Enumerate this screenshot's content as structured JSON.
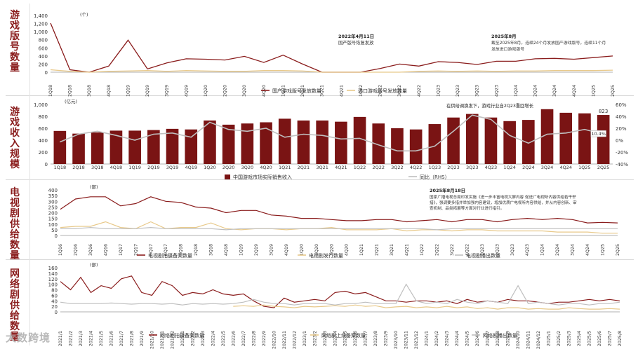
{
  "rows": [
    {
      "label": "游戏版号数量"
    },
    {
      "label": "游戏收入规模"
    },
    {
      "label": "电视剧供给数量"
    },
    {
      "label": "网络剧供给数量"
    }
  ],
  "watermark": "大数跨境",
  "chart_data": [
    {
      "type": "line",
      "unit": "(个)",
      "ylim": [
        0,
        1400
      ],
      "yticks": [
        "0",
        "200",
        "400",
        "600",
        "800",
        "1,000",
        "1,200",
        "1,400"
      ],
      "categories": [
        "1Q18",
        "2Q18",
        "3Q18",
        "4Q18",
        "1Q19",
        "2Q19",
        "3Q19",
        "4Q19",
        "1Q20",
        "2Q20",
        "3Q20",
        "4Q20",
        "1Q21",
        "2Q21",
        "3Q21",
        "4Q21",
        "1Q22",
        "2Q22",
        "3Q22",
        "4Q22",
        "1Q23",
        "2Q23",
        "3Q23",
        "4Q23",
        "1Q24",
        "2Q24",
        "3Q24",
        "4Q24",
        "1Q25",
        "2Q25"
      ],
      "series": [
        {
          "name": "国产游戏版号发放数量",
          "color": "#8a1c1c",
          "values": [
            1210,
            60,
            0,
            150,
            790,
            80,
            230,
            330,
            320,
            300,
            390,
            240,
            420,
            200,
            0,
            0,
            0,
            90,
            200,
            150,
            260,
            240,
            190,
            270,
            270,
            330,
            340,
            320,
            360,
            400
          ]
        },
        {
          "name": "进口游戏版号发放数量",
          "color": "#e8c98a",
          "values": [
            60,
            20,
            0,
            20,
            30,
            40,
            20,
            40,
            30,
            20,
            20,
            40,
            40,
            30,
            0,
            0,
            0,
            0,
            0,
            20,
            30,
            20,
            30,
            20,
            30,
            30,
            40,
            40,
            40,
            50
          ]
        }
      ],
      "annotations": [
        {
          "title": "2022年4月11日",
          "text": "国产版号恢复发放"
        },
        {
          "title": "2025年8月",
          "text": "截至2025年8月，连续24个月发放国产游戏版号，连续11个月",
          "text2": "发放进口游戏版号"
        }
      ]
    },
    {
      "type": "bar",
      "unit": "(亿元)",
      "ylim": [
        0,
        1000
      ],
      "yticks": [
        "0",
        "200",
        "400",
        "600",
        "800",
        "1,000"
      ],
      "y2ticks": [
        "-40%",
        "-20%",
        "0%",
        "20%",
        "40%",
        "60%"
      ],
      "categories": [
        "1Q18",
        "2Q18",
        "3Q18",
        "4Q18",
        "1Q19",
        "2Q19",
        "3Q19",
        "4Q19",
        "1Q20",
        "2Q20",
        "3Q20",
        "4Q20",
        "1Q21",
        "2Q21",
        "3Q21",
        "4Q21",
        "1Q22",
        "2Q22",
        "3Q22",
        "4Q22",
        "1Q23",
        "2Q23",
        "3Q23",
        "4Q23",
        "1Q24",
        "2Q24",
        "3Q24",
        "4Q24",
        "1Q25",
        "2Q25"
      ],
      "series": [
        {
          "name": "中国游戏市场实际销售收入",
          "color": "#7a1414",
          "values": [
            555,
            510,
            530,
            560,
            560,
            570,
            590,
            580,
            730,
            660,
            680,
            700,
            760,
            730,
            730,
            710,
            790,
            680,
            600,
            580,
            670,
            780,
            840,
            780,
            720,
            740,
            920,
            860,
            850,
            823
          ]
        },
        {
          "name": "同比（RHS）",
          "color": "#bfbfbf",
          "axis": "right",
          "values": [
            -3,
            10,
            15,
            8,
            0,
            10,
            12,
            5,
            30,
            18,
            15,
            20,
            5,
            10,
            8,
            2,
            3,
            -8,
            -18,
            -18,
            -10,
            15,
            42,
            35,
            8,
            -5,
            10,
            12,
            18,
            10.4
          ]
        }
      ],
      "data_labels": [
        {
          "text": "823"
        },
        {
          "text": "10.4%"
        }
      ],
      "annotations": [
        {
          "text": "在供给调换发下，游戏行业自2Q23重回增长"
        }
      ]
    },
    {
      "type": "line",
      "unit": "(部)",
      "ylim": [
        0,
        400
      ],
      "yticks": [
        "0",
        "50",
        "100",
        "150",
        "200",
        "250",
        "300",
        "350",
        "400"
      ],
      "categories": [
        "1Q16",
        "2Q16",
        "3Q16",
        "4Q16",
        "1Q17",
        "2Q17",
        "3Q17",
        "4Q17",
        "1Q18",
        "2Q18",
        "3Q18",
        "4Q18",
        "1Q19",
        "2Q19",
        "3Q19",
        "4Q19",
        "1Q20",
        "2Q20",
        "3Q20",
        "4Q20",
        "1Q21",
        "2Q21",
        "3Q21",
        "4Q21",
        "1Q22",
        "2Q22",
        "3Q22",
        "4Q22",
        "1Q23",
        "2Q23",
        "3Q23",
        "4Q23",
        "1Q24",
        "2Q24",
        "3Q24",
        "4Q24",
        "1Q25",
        "2Q25"
      ],
      "series": [
        {
          "name": "电视剧拍摄备案数量",
          "color": "#8a1c1c",
          "values": [
            230,
            320,
            340,
            340,
            260,
            280,
            340,
            300,
            290,
            250,
            240,
            200,
            220,
            220,
            180,
            170,
            150,
            150,
            140,
            130,
            130,
            140,
            140,
            120,
            130,
            140,
            120,
            140,
            140,
            120,
            140,
            150,
            140,
            150,
            140,
            110,
            115,
            110
          ]
        },
        {
          "name": "电视剧发行数量",
          "color": "#e8c98a",
          "values": [
            70,
            80,
            80,
            120,
            70,
            60,
            120,
            60,
            70,
            70,
            110,
            60,
            50,
            60,
            60,
            50,
            60,
            60,
            70,
            50,
            50,
            50,
            60,
            40,
            50,
            50,
            40,
            50,
            50,
            40,
            40,
            40,
            40,
            30,
            30,
            30,
            20,
            20
          ]
        },
        {
          "name": "电视剧播出数量",
          "color": "#bfbfbf",
          "values": [
            60,
            60,
            70,
            60,
            60,
            60,
            70,
            60,
            60,
            60,
            60,
            50,
            60,
            60,
            60,
            60,
            60,
            60,
            60,
            60,
            60,
            60,
            60,
            60,
            60,
            50,
            60,
            60,
            60,
            60,
            60,
            60,
            60,
            60,
            60,
            60,
            60,
            60
          ]
        }
      ],
      "annotations": [
        {
          "title": "2025年8月18日",
          "text": "国家广播电视总局印发实施《进一步丰富电视大屏内容 促进广电视听内容供给若干举",
          "text2": "措》，强调要多措并举加强内容建设，增加优质广电视听内容供给，并从内容创新、审",
          "text3": "查机制、品类拓展等方面对行业进行指引。"
        }
      ]
    },
    {
      "type": "line",
      "unit": "(部)",
      "ylim": [
        0,
        160
      ],
      "yticks": [
        "0",
        "20",
        "40",
        "60",
        "80",
        "100",
        "120",
        "140",
        "160"
      ],
      "categories": [
        "2021/1",
        "2021/2",
        "2021/3",
        "2021/4",
        "2021/5",
        "2021/6",
        "2021/7",
        "2021/8",
        "2021/9",
        "2021/10",
        "2021/11",
        "2021/12",
        "2022/1",
        "2022/2",
        "2022/3",
        "2022/4",
        "2022/5",
        "2022/6",
        "2022/7",
        "2022/8",
        "2022/9",
        "2022/10",
        "2022/11",
        "2022/12",
        "2023/1",
        "2023/2",
        "2023/3",
        "2023/4",
        "2023/5",
        "2023/6",
        "2023/7",
        "2023/8",
        "2023/9",
        "2023/10",
        "2023/11",
        "2023/12",
        "2024/1",
        "2024/2",
        "2024/3",
        "2024/4",
        "2024/5",
        "2024/6",
        "2024/7",
        "2024/8",
        "2024/9",
        "2024/10",
        "2024/11",
        "2024/12",
        "2025/1",
        "2025/2",
        "2025/3",
        "2025/4",
        "2025/5",
        "2025/6",
        "2025/7",
        "2025/8"
      ],
      "series": [
        {
          "name": "网络剧拍摄备案数量",
          "color": "#8a1c1c",
          "values": [
            110,
            80,
            125,
            70,
            95,
            85,
            120,
            130,
            70,
            60,
            110,
            95,
            60,
            70,
            65,
            80,
            65,
            60,
            65,
            40,
            20,
            15,
            50,
            35,
            40,
            45,
            40,
            70,
            75,
            65,
            70,
            55,
            40,
            40,
            35,
            40,
            40,
            35,
            40,
            30,
            45,
            35,
            40,
            35,
            45,
            40,
            40,
            35,
            30,
            35,
            35,
            40,
            45,
            40,
            45,
            40
          ]
        },
        {
          "name": "网络剧上线备案数量",
          "color": "#e8c98a",
          "values": [
            null,
            null,
            null,
            null,
            null,
            null,
            null,
            null,
            null,
            null,
            null,
            null,
            null,
            null,
            null,
            null,
            null,
            20,
            22,
            20,
            25,
            20,
            18,
            15,
            20,
            18,
            20,
            22,
            20,
            25,
            20,
            22,
            15,
            18,
            20,
            15,
            18,
            15,
            20,
            15,
            18,
            12,
            15,
            10,
            15,
            15,
            10,
            12,
            10,
            10,
            15,
            12,
            10,
            10,
            12,
            10
          ]
        },
        {
          "name": "网络剧播出数量",
          "color": "#bfbfbf",
          "values": [
            35,
            30,
            30,
            30,
            30,
            32,
            30,
            28,
            30,
            30,
            28,
            30,
            25,
            30,
            28,
            30,
            28,
            30,
            35,
            45,
            35,
            30,
            30,
            25,
            30,
            30,
            30,
            25,
            30,
            30,
            35,
            30,
            30,
            30,
            100,
            40,
            30,
            35,
            30,
            45,
            35,
            30,
            40,
            35,
            30,
            95,
            30,
            35,
            30,
            25,
            30,
            30,
            25,
            30,
            30,
            35
          ]
        }
      ]
    }
  ]
}
